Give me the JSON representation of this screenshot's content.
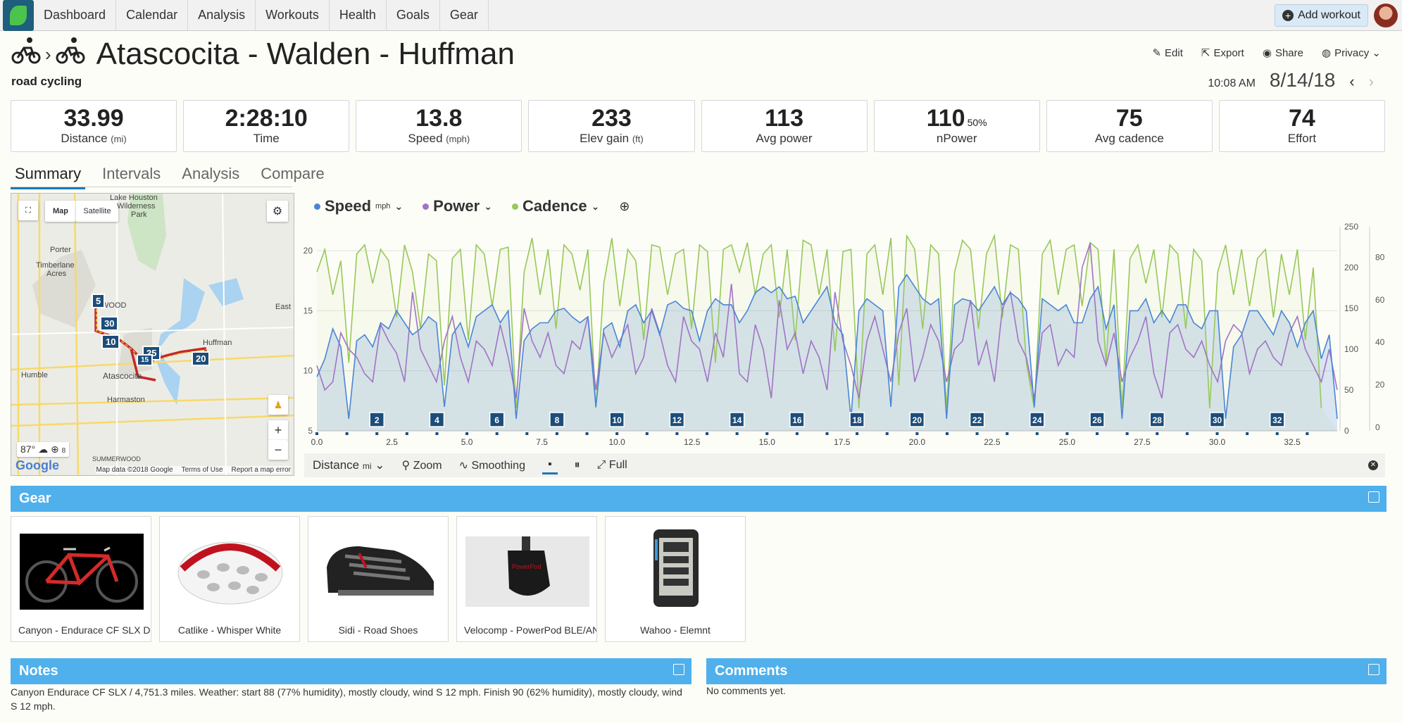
{
  "nav": {
    "items": [
      "Dashboard",
      "Calendar",
      "Analysis",
      "Workouts",
      "Health",
      "Goals",
      "Gear"
    ],
    "add_workout": "Add workout"
  },
  "workout": {
    "title": "Atascocita - Walden - Huffman",
    "subtitle": "road cycling",
    "time": "10:08 AM",
    "date": "8/14/18"
  },
  "actions": {
    "edit": "Edit",
    "export": "Export",
    "share": "Share",
    "privacy": "Privacy"
  },
  "stats": [
    {
      "value": "33.99",
      "label": "Distance",
      "unit": "(mi)"
    },
    {
      "value": "2:28:10",
      "label": "Time",
      "unit": ""
    },
    {
      "value": "13.8",
      "label": "Speed",
      "unit": "(mph)"
    },
    {
      "value": "233",
      "label": "Elev gain",
      "unit": "(ft)"
    },
    {
      "value": "113",
      "label": "Avg power",
      "unit": ""
    },
    {
      "value": "110",
      "label": "nPower",
      "unit": "",
      "pct": "50%"
    },
    {
      "value": "75",
      "label": "Avg cadence",
      "unit": ""
    },
    {
      "value": "74",
      "label": "Effort",
      "unit": ""
    }
  ],
  "tabs": [
    "Summary",
    "Intervals",
    "Analysis",
    "Compare"
  ],
  "map": {
    "type_map": "Map",
    "type_satellite": "Satellite",
    "labels": [
      "Lake Houston",
      "Wilderness",
      "Park",
      "Porter",
      "Timberlane",
      "Acres",
      "WOOD",
      "East",
      "Huffman",
      "Humble",
      "Atascocita",
      "Harmaston",
      "SUMMERWOOD"
    ],
    "markers": [
      "5",
      "30",
      "10",
      "25",
      "15",
      "20"
    ],
    "weather_temp": "87°",
    "weather_wind": "8",
    "google": "Google",
    "footer": [
      "Map data ©2018 Google",
      "Terms of Use",
      "Report a map error"
    ]
  },
  "legend": {
    "speed": "Speed",
    "speed_unit": "mph",
    "power": "Power",
    "cadence": "Cadence"
  },
  "colors": {
    "speed": "#4a85d6",
    "power": "#a173c4",
    "cadence": "#98c85a",
    "accent": "#4fb0ec"
  },
  "chart_data": {
    "type": "line",
    "xlabel": "Distance",
    "x_unit": "mi",
    "xlim": [
      0,
      34
    ],
    "x_ticks": [
      "0.0",
      "2.5",
      "5.0",
      "7.5",
      "10.0",
      "12.5",
      "15.0",
      "17.5",
      "20.0",
      "22.5",
      "25.0",
      "27.5",
      "30.0",
      "32.5"
    ],
    "y_left_ticks": [
      "5",
      "10",
      "15",
      "20"
    ],
    "y_left_lim": [
      5,
      22
    ],
    "y_mid_ticks": [
      "0",
      "50",
      "100",
      "150",
      "200",
      "250"
    ],
    "y_mid_lim": [
      0,
      250
    ],
    "y_right_ticks": [
      "0",
      "20",
      "40",
      "60",
      "80"
    ],
    "lap_markers": [
      "2",
      "4",
      "6",
      "8",
      "10",
      "12",
      "14",
      "16",
      "18",
      "20",
      "22",
      "24",
      "26",
      "28",
      "30",
      "32"
    ],
    "series": [
      {
        "name": "Speed",
        "unit": "mph",
        "values": [
          9.5,
          11,
          13.5,
          12,
          6,
          12.5,
          13,
          12,
          14,
          13.5,
          15,
          14,
          13,
          13.5,
          14.5,
          14,
          7,
          13,
          14,
          12,
          14.5,
          15,
          15.5,
          14,
          15,
          6,
          12.5,
          13.5,
          14,
          14,
          15,
          15.2,
          14.5,
          14,
          14.5,
          7,
          13.5,
          14,
          12,
          15,
          15.5,
          14,
          15,
          13,
          15.5,
          15.8,
          15.2,
          15,
          12.5,
          15,
          16,
          15.5,
          15.5,
          14,
          15,
          16.5,
          17,
          16.5,
          17,
          16,
          16.2,
          14,
          15,
          16,
          17,
          14,
          13,
          6,
          15,
          16,
          15.5,
          15,
          7,
          17,
          18,
          17,
          16,
          15.5,
          16,
          6,
          15.5,
          16,
          15.8,
          15,
          16,
          17,
          15.5,
          16.5,
          16,
          15,
          7,
          16,
          15.5,
          15,
          15.5,
          14,
          14,
          16,
          17,
          13.5,
          15.5,
          6,
          15,
          15,
          16,
          14,
          15,
          14,
          15.5,
          15.5,
          14,
          13.5,
          15,
          15,
          6,
          12,
          13,
          15,
          15,
          14,
          13,
          15,
          14,
          12,
          14,
          15,
          11,
          13,
          6
        ]
      },
      {
        "name": "Power",
        "unit": "",
        "values": [
          80,
          50,
          60,
          120,
          100,
          90,
          70,
          60,
          130,
          110,
          95,
          60,
          170,
          100,
          80,
          60,
          110,
          140,
          90,
          60,
          110,
          100,
          80,
          130,
          90,
          40,
          150,
          110,
          90,
          120,
          80,
          70,
          110,
          100,
          140,
          50,
          120,
          90,
          110,
          130,
          70,
          90,
          150,
          120,
          80,
          60,
          140,
          110,
          100,
          60,
          120,
          90,
          180,
          70,
          60,
          130,
          100,
          40,
          160,
          100,
          120,
          70,
          110,
          90,
          50,
          170,
          110,
          80,
          40,
          110,
          140,
          100,
          60,
          120,
          150,
          60,
          90,
          130,
          110,
          60,
          100,
          110,
          160,
          80,
          110,
          60,
          150,
          170,
          110,
          90,
          40,
          120,
          130,
          80,
          100,
          90,
          200,
          230,
          110,
          80,
          120,
          60,
          90,
          110,
          140,
          70,
          40,
          120,
          130,
          100,
          90,
          110,
          80,
          60,
          110,
          130,
          120,
          70,
          100,
          110,
          90,
          80,
          120,
          140,
          100,
          80,
          60,
          100,
          50
        ]
      },
      {
        "name": "Cadence",
        "unit": "",
        "values": [
          70,
          80,
          60,
          75,
          30,
          78,
          82,
          65,
          80,
          75,
          50,
          82,
          70,
          45,
          78,
          75,
          20,
          76,
          80,
          40,
          82,
          78,
          55,
          80,
          81,
          10,
          70,
          85,
          60,
          80,
          45,
          82,
          78,
          62,
          80,
          10,
          65,
          85,
          55,
          80,
          75,
          40,
          82,
          81,
          60,
          78,
          80,
          45,
          82,
          79,
          30,
          80,
          82,
          70,
          83,
          60,
          78,
          82,
          50,
          80,
          40,
          84,
          82,
          60,
          80,
          35,
          79,
          80,
          10,
          78,
          82,
          60,
          85,
          20,
          86,
          80,
          45,
          82,
          78,
          10,
          70,
          84,
          80,
          45,
          78,
          86,
          50,
          82,
          80,
          30,
          10,
          78,
          84,
          60,
          80,
          82,
          55,
          83,
          80,
          30,
          80,
          10,
          76,
          82,
          65,
          80,
          50,
          82,
          78,
          45,
          80,
          75,
          10,
          70,
          82,
          60,
          80,
          55,
          76,
          80,
          50,
          78,
          60,
          80,
          40,
          72,
          10
        ]
      }
    ]
  },
  "chart_toolbar": {
    "axis": "Distance",
    "axis_unit": "mi",
    "zoom": "Zoom",
    "smoothing": "Smoothing",
    "full": "Full"
  },
  "gear": {
    "heading": "Gear",
    "items": [
      {
        "name": "Canyon - Endurace CF SLX Di"
      },
      {
        "name": "Catlike - Whisper White"
      },
      {
        "name": "Sidi - Road Shoes"
      },
      {
        "name": "Velocomp - PowerPod BLE/ANT"
      },
      {
        "name": "Wahoo - Elemnt"
      }
    ]
  },
  "notes": {
    "heading": "Notes",
    "text": "Canyon Endurace CF SLX / 4,751.3 miles. Weather: start 88 (77% humidity), mostly cloudy, wind S 12 mph. Finish 90 (62% humidity), mostly cloudy, wind S 12 mph."
  },
  "comments": {
    "heading": "Comments",
    "text": "No comments yet."
  }
}
